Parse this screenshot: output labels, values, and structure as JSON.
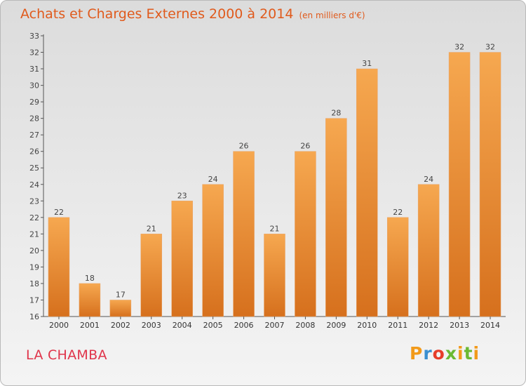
{
  "title": "Achats et Charges Externes 2000 à 2014",
  "subtitle": "(en milliers d'€)",
  "place": "LA CHAMBA",
  "logo": {
    "p": "P",
    "r": "r",
    "o": "o",
    "x": "x",
    "i1": "i",
    "t": "t",
    "i2": "i"
  },
  "colors": {
    "bar_light": "#f6a850",
    "bar_dark": "#d6701d",
    "title": "#e05a1c",
    "place": "#e0344a"
  },
  "chart_data": {
    "type": "bar",
    "title": "Achats et Charges Externes 2000 à 2014",
    "xlabel": "",
    "ylabel": "",
    "categories": [
      "2000",
      "2001",
      "2002",
      "2003",
      "2004",
      "2005",
      "2006",
      "2007",
      "2008",
      "2009",
      "2010",
      "2011",
      "2012",
      "2013",
      "2014"
    ],
    "values": [
      22,
      18,
      17,
      21,
      23,
      24,
      26,
      21,
      26,
      28,
      31,
      22,
      24,
      32,
      32
    ],
    "ylim": [
      16,
      33
    ],
    "yticks": [
      16,
      17,
      18,
      19,
      20,
      21,
      22,
      23,
      24,
      25,
      26,
      27,
      28,
      29,
      30,
      31,
      32,
      33
    ],
    "grid": false,
    "data_labels": true
  }
}
